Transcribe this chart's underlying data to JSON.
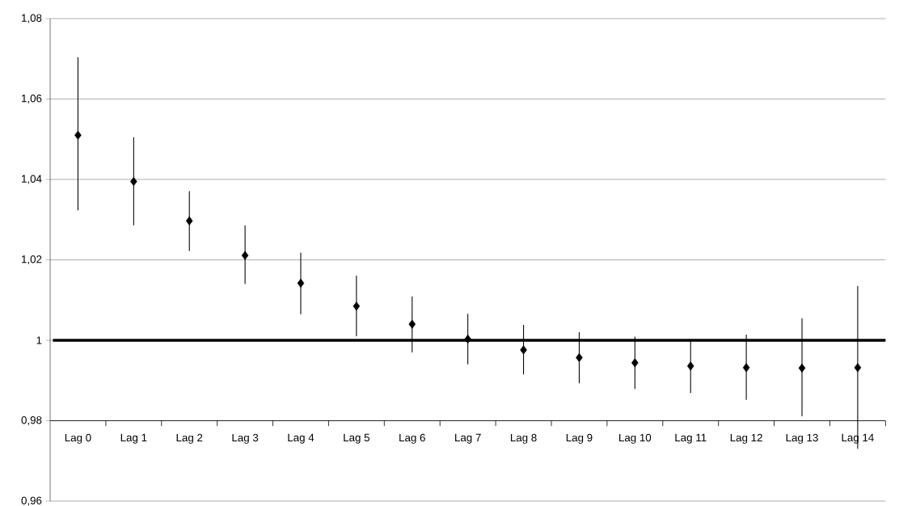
{
  "chart_data": {
    "type": "scatter",
    "categories": [
      "Lag 0",
      "Lag 1",
      "Lag 2",
      "Lag 3",
      "Lag 4",
      "Lag 5",
      "Lag 6",
      "Lag 7",
      "Lag 8",
      "Lag 9",
      "Lag 10",
      "Lag 11",
      "Lag 12",
      "Lag 13",
      "Lag 14"
    ],
    "values": [
      1.051,
      1.0395,
      1.0297,
      1.0211,
      1.0142,
      1.0085,
      1.004,
      1.0003,
      0.9976,
      0.9957,
      0.9944,
      0.9936,
      0.9932,
      0.9931,
      0.9932
    ],
    "errors": [
      [
        1.0323,
        1.0704
      ],
      [
        1.0286,
        1.0505
      ],
      [
        1.0222,
        1.0371
      ],
      [
        1.014,
        1.0286
      ],
      [
        1.0065,
        1.0218
      ],
      [
        1.001,
        1.0161
      ],
      [
        0.997,
        1.0109
      ],
      [
        0.994,
        1.0066
      ],
      [
        0.9915,
        1.0038
      ],
      [
        0.9893,
        1.002
      ],
      [
        0.9879,
        1.0009
      ],
      [
        0.9869,
        1.0
      ],
      [
        0.9852,
        1.0014
      ],
      [
        0.9811,
        1.0055
      ],
      [
        0.973,
        1.0135
      ]
    ],
    "color": "#000000",
    "marker": "diamond",
    "ylim": [
      0.96,
      1.08
    ],
    "yticks": [
      {
        "value": 0.96,
        "label": "0,96"
      },
      {
        "value": 0.98,
        "label": "0,98"
      },
      1,
      {
        "value": 1.02,
        "label": "1,02"
      },
      {
        "value": 1.04,
        "label": "1,04"
      },
      {
        "value": 1.06,
        "label": "1,06"
      },
      {
        "value": 1.08,
        "label": "1,08"
      }
    ],
    "grid": "y",
    "ref_lines": [
      {
        "axis": "y",
        "value": 1,
        "color": "#000000",
        "line_style": "solid"
      }
    ]
  }
}
